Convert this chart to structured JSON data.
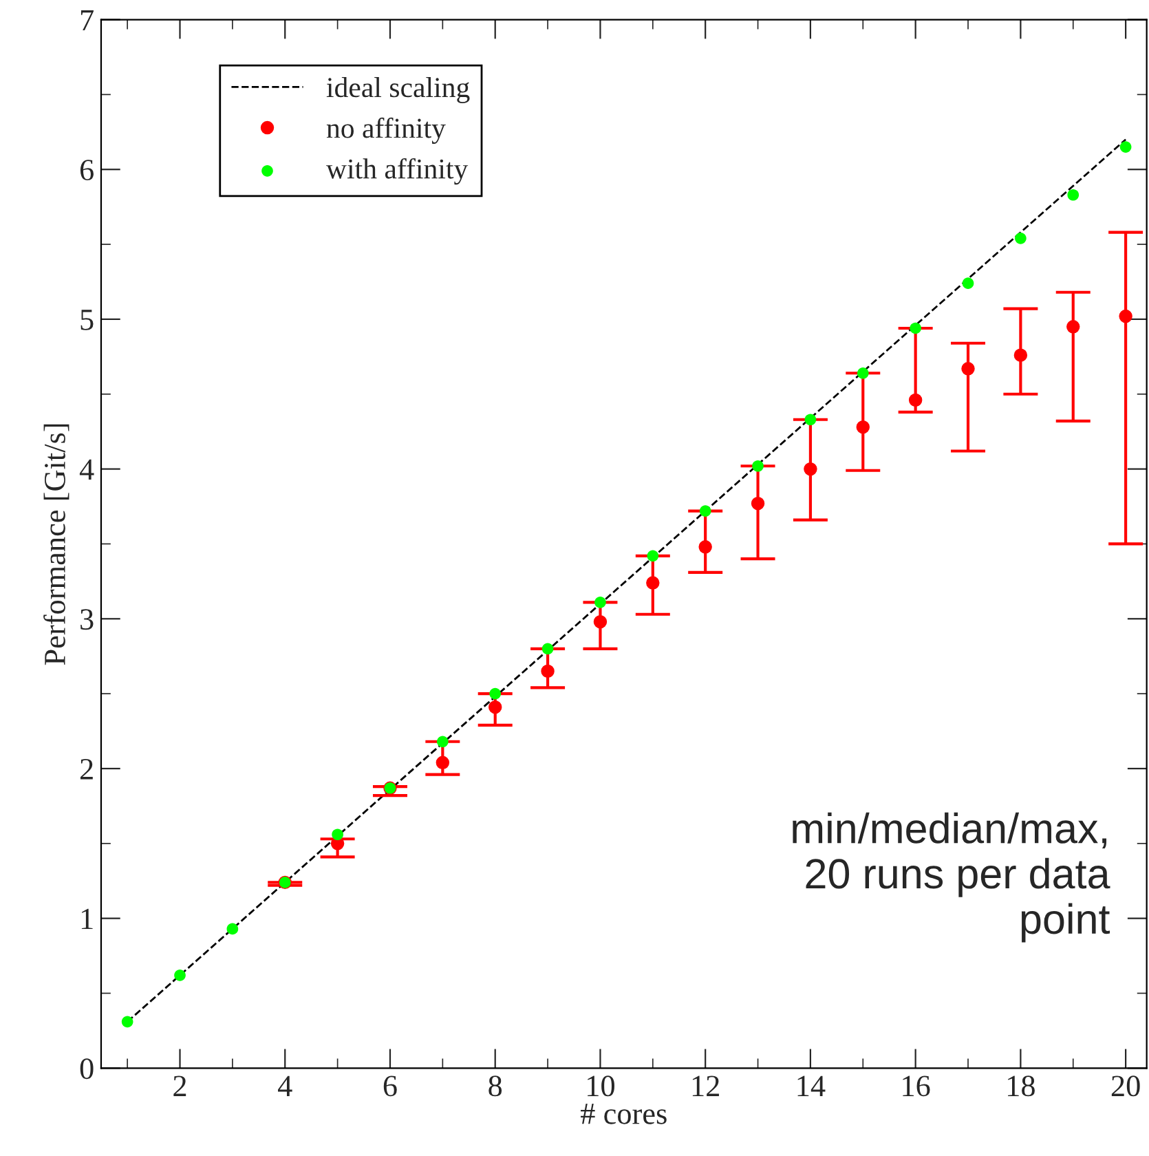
{
  "chart_data": {
    "type": "scatter",
    "xlabel": "# cores",
    "ylabel": "Performance [Git/s]",
    "xlim": [
      0.5,
      20.4
    ],
    "ylim": [
      0,
      7
    ],
    "xticks": [
      2,
      4,
      6,
      8,
      10,
      12,
      14,
      16,
      18,
      20
    ],
    "yticks": [
      0,
      1,
      2,
      3,
      4,
      5,
      6,
      7
    ],
    "grid": false,
    "legend": "top left",
    "marker": "circle",
    "series": [
      {
        "name": "ideal scaling",
        "type": "line",
        "line_style": "dashed",
        "marker": "none",
        "color": "#000000",
        "x": [
          1,
          20
        ],
        "values": [
          0.31,
          6.2
        ]
      },
      {
        "name": "no affinity",
        "color": "#ff0000",
        "x": [
          4,
          5,
          6,
          7,
          8,
          9,
          10,
          11,
          12,
          13,
          14,
          15,
          16,
          17,
          18,
          19,
          20
        ],
        "values": [
          1.24,
          1.5,
          1.87,
          2.04,
          2.41,
          2.65,
          2.98,
          3.24,
          3.48,
          3.77,
          4.0,
          4.28,
          4.46,
          4.67,
          4.76,
          4.95,
          5.02
        ],
        "errors": [
          [
            1.22,
            1.24
          ],
          [
            1.41,
            1.53
          ],
          [
            1.82,
            1.88
          ],
          [
            1.96,
            2.18
          ],
          [
            2.29,
            2.5
          ],
          [
            2.54,
            2.8
          ],
          [
            2.8,
            3.11
          ],
          [
            3.03,
            3.42
          ],
          [
            3.31,
            3.72
          ],
          [
            3.4,
            4.02
          ],
          [
            3.66,
            4.33
          ],
          [
            3.99,
            4.64
          ],
          [
            4.38,
            4.94
          ],
          [
            4.12,
            4.84
          ],
          [
            4.5,
            5.07
          ],
          [
            4.32,
            5.18
          ],
          [
            3.5,
            5.58
          ]
        ]
      },
      {
        "name": "with affinity",
        "color": "#00ff00",
        "x": [
          1,
          2,
          3,
          4,
          5,
          6,
          7,
          8,
          9,
          10,
          11,
          12,
          13,
          14,
          15,
          16,
          17,
          18,
          19,
          20
        ],
        "values": [
          0.31,
          0.62,
          0.93,
          1.24,
          1.56,
          1.87,
          2.18,
          2.5,
          2.8,
          3.11,
          3.42,
          3.72,
          4.02,
          4.33,
          4.64,
          4.94,
          5.24,
          5.54,
          5.83,
          6.15
        ]
      }
    ],
    "annotations": [
      "min/median/max,\n20 runs per data\npoint"
    ]
  }
}
